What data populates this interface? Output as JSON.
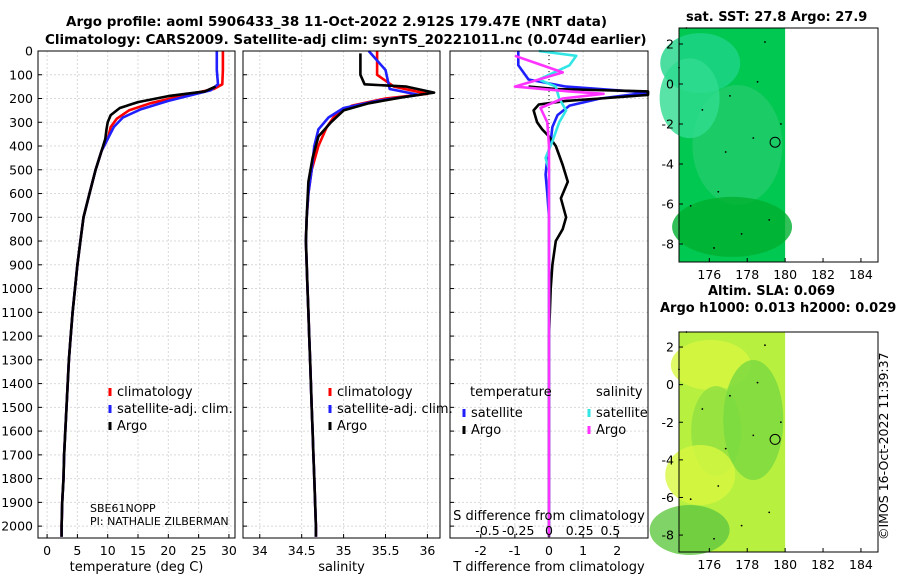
{
  "header": {
    "line1": "Argo profile: aoml 5906433_38 11-Oct-2022 2.912S 179.47E (NRT data)",
    "line2": "Climatology: CARS2009. Satellite-adj clim: synTS_20221011.nc (0.074d earlier)"
  },
  "colors": {
    "climatology": "#ff0000",
    "satellite_adj": "#1f1fff",
    "argo": "#000000",
    "sal_satellite": "#33e6e6",
    "sal_argo": "#ff33ff",
    "grid": "#d9d9d9",
    "map_fill": "#00c850",
    "map_fill2": "#b8f040"
  },
  "chart_data": [
    {
      "type": "line",
      "title": "",
      "xlabel": "temperature (deg C)",
      "ylabel": "",
      "xlim": [
        -1.5,
        31
      ],
      "ylim": [
        2050,
        0
      ],
      "xticks": [
        0,
        5,
        10,
        15,
        20,
        25,
        30
      ],
      "yticks": [
        0,
        100,
        200,
        300,
        400,
        500,
        600,
        700,
        800,
        900,
        1000,
        1100,
        1200,
        1300,
        1400,
        1500,
        1600,
        1700,
        1800,
        1900,
        2000
      ],
      "legend": [
        "climatology",
        "satellite-adj. clim.",
        "Argo"
      ],
      "annotations": [
        "SBE61NOPP",
        "PI: NATHALIE ZILBERMAN"
      ],
      "series": [
        {
          "name": "climatology",
          "points": [
            [
              29.0,
              0
            ],
            [
              29.0,
              80
            ],
            [
              28.9,
              140
            ],
            [
              27.5,
              160
            ],
            [
              22.0,
              190
            ],
            [
              17.0,
              220
            ],
            [
              13.5,
              250
            ],
            [
              11.5,
              285
            ],
            [
              10.5,
              320
            ],
            [
              10.0,
              370
            ],
            [
              9.0,
              420
            ],
            [
              8.0,
              500
            ],
            [
              7.0,
              600
            ],
            [
              6.0,
              700
            ],
            [
              5.5,
              800
            ],
            [
              5.0,
              900
            ],
            [
              4.6,
              1000
            ],
            [
              4.2,
              1100
            ],
            [
              3.9,
              1200
            ],
            [
              3.6,
              1300
            ],
            [
              3.4,
              1400
            ],
            [
              3.2,
              1500
            ],
            [
              3.0,
              1600
            ],
            [
              2.8,
              1700
            ],
            [
              2.7,
              1800
            ],
            [
              2.5,
              1900
            ],
            [
              2.4,
              2000
            ],
            [
              2.4,
              2045
            ]
          ]
        },
        {
          "name": "satellite-adj. clim.",
          "points": [
            [
              28.0,
              0
            ],
            [
              28.0,
              80
            ],
            [
              28.2,
              140
            ],
            [
              27.0,
              165
            ],
            [
              20.0,
              210
            ],
            [
              15.5,
              245
            ],
            [
              12.5,
              280
            ],
            [
              11.0,
              320
            ],
            [
              10.0,
              370
            ],
            [
              9.0,
              420
            ],
            [
              8.0,
              500
            ],
            [
              7.0,
              600
            ],
            [
              6.0,
              700
            ],
            [
              5.5,
              800
            ],
            [
              5.0,
              900
            ],
            [
              4.6,
              1000
            ],
            [
              4.2,
              1100
            ],
            [
              3.9,
              1200
            ],
            [
              3.6,
              1300
            ],
            [
              3.4,
              1400
            ],
            [
              3.2,
              1500
            ],
            [
              3.0,
              1600
            ],
            [
              2.8,
              1700
            ],
            [
              2.7,
              1800
            ],
            [
              2.5,
              1900
            ],
            [
              2.4,
              2000
            ],
            [
              2.4,
              2045
            ]
          ]
        },
        {
          "name": "Argo",
          "points": [
            [
              27.8,
              150
            ],
            [
              26.0,
              170
            ],
            [
              20.0,
              190
            ],
            [
              15.0,
              215
            ],
            [
              12.0,
              240
            ],
            [
              10.5,
              270
            ],
            [
              10.0,
              300
            ],
            [
              9.8,
              330
            ],
            [
              9.6,
              370
            ],
            [
              9.0,
              420
            ],
            [
              8.0,
              500
            ],
            [
              7.0,
              600
            ],
            [
              6.0,
              700
            ],
            [
              5.5,
              800
            ],
            [
              5.0,
              900
            ],
            [
              4.6,
              1000
            ],
            [
              4.2,
              1100
            ],
            [
              3.9,
              1200
            ],
            [
              3.6,
              1300
            ],
            [
              3.4,
              1400
            ],
            [
              3.2,
              1500
            ],
            [
              3.0,
              1600
            ],
            [
              2.8,
              1700
            ],
            [
              2.7,
              1800
            ],
            [
              2.5,
              1900
            ],
            [
              2.4,
              2000
            ],
            [
              2.4,
              2045
            ]
          ]
        }
      ]
    },
    {
      "type": "line",
      "xlabel": "salinity",
      "xlim": [
        33.8,
        36.15
      ],
      "ylim": [
        2050,
        0
      ],
      "xticks": [
        34,
        34.5,
        35,
        35.5,
        36
      ],
      "xticklabels": [
        "34",
        "34.5",
        "35",
        "35.5",
        "36"
      ],
      "legend": [
        "climatology",
        "satellite-adj. clim.",
        "Argo"
      ],
      "series": [
        {
          "name": "climatology",
          "points": [
            [
              35.4,
              0
            ],
            [
              35.4,
              100
            ],
            [
              35.6,
              150
            ],
            [
              36.0,
              180
            ],
            [
              35.5,
              200
            ],
            [
              35.1,
              230
            ],
            [
              34.9,
              270
            ],
            [
              34.8,
              320
            ],
            [
              34.7,
              400
            ],
            [
              34.62,
              500
            ],
            [
              34.58,
              600
            ],
            [
              34.56,
              700
            ],
            [
              34.55,
              800
            ],
            [
              34.56,
              900
            ],
            [
              34.57,
              1000
            ],
            [
              34.58,
              1100
            ],
            [
              34.59,
              1200
            ],
            [
              34.6,
              1300
            ],
            [
              34.61,
              1400
            ],
            [
              34.62,
              1500
            ],
            [
              34.63,
              1600
            ],
            [
              34.64,
              1700
            ],
            [
              34.65,
              1800
            ],
            [
              34.66,
              1900
            ],
            [
              34.67,
              2000
            ],
            [
              34.67,
              2045
            ]
          ]
        },
        {
          "name": "satellite-adj. clim.",
          "points": [
            [
              35.3,
              0
            ],
            [
              35.5,
              80
            ],
            [
              35.55,
              160
            ],
            [
              35.9,
              185
            ],
            [
              35.4,
              210
            ],
            [
              35.0,
              240
            ],
            [
              34.82,
              280
            ],
            [
              34.7,
              330
            ],
            [
              34.65,
              400
            ],
            [
              34.62,
              500
            ],
            [
              34.58,
              600
            ],
            [
              34.56,
              700
            ],
            [
              34.55,
              800
            ],
            [
              34.56,
              900
            ],
            [
              34.57,
              1000
            ],
            [
              34.58,
              1100
            ],
            [
              34.59,
              1200
            ],
            [
              34.6,
              1300
            ],
            [
              34.61,
              1400
            ],
            [
              34.62,
              1500
            ],
            [
              34.63,
              1600
            ],
            [
              34.64,
              1700
            ],
            [
              34.65,
              1800
            ],
            [
              34.66,
              1900
            ],
            [
              34.67,
              2000
            ],
            [
              34.67,
              2045
            ]
          ]
        },
        {
          "name": "Argo",
          "points": [
            [
              35.2,
              10
            ],
            [
              35.2,
              100
            ],
            [
              35.25,
              140
            ],
            [
              35.75,
              150
            ],
            [
              36.08,
              175
            ],
            [
              35.7,
              195
            ],
            [
              35.3,
              220
            ],
            [
              35.0,
              250
            ],
            [
              34.85,
              300
            ],
            [
              34.7,
              360
            ],
            [
              34.63,
              450
            ],
            [
              34.58,
              550
            ],
            [
              34.56,
              700
            ],
            [
              34.55,
              800
            ],
            [
              34.56,
              900
            ],
            [
              34.57,
              1000
            ],
            [
              34.58,
              1100
            ],
            [
              34.59,
              1200
            ],
            [
              34.6,
              1300
            ],
            [
              34.61,
              1400
            ],
            [
              34.62,
              1500
            ],
            [
              34.63,
              1600
            ],
            [
              34.64,
              1700
            ],
            [
              34.65,
              1800
            ],
            [
              34.66,
              1900
            ],
            [
              34.67,
              2000
            ],
            [
              34.67,
              2045
            ]
          ]
        }
      ]
    },
    {
      "type": "line",
      "xlabel": "T difference from climatology",
      "xlabel_top": "S difference from climatology",
      "xlim": [
        -2.9,
        2.9
      ],
      "ylim": [
        2050,
        0
      ],
      "xticks": [
        -2,
        -1,
        0,
        1,
        2
      ],
      "s_ticks": [
        "-0.5",
        "-0.25",
        "0",
        "0.25",
        "0.5"
      ],
      "legend_temperature_title": "temperature",
      "legend_salinity_title": "salinity",
      "legend": [
        "satellite",
        "Argo",
        "satellite",
        "Argo"
      ],
      "series": [
        {
          "name": "temperature satellite",
          "points": [
            [
              -0.9,
              0
            ],
            [
              -0.9,
              60
            ],
            [
              -0.6,
              120
            ],
            [
              0.5,
              150
            ],
            [
              2.9,
              175
            ],
            [
              1.5,
              200
            ],
            [
              0.6,
              230
            ],
            [
              0.25,
              270
            ],
            [
              0.1,
              320
            ],
            [
              0.05,
              380
            ],
            [
              -0.05,
              450
            ],
            [
              -0.1,
              520
            ],
            [
              -0.05,
              600
            ],
            [
              0.0,
              700
            ],
            [
              0.0,
              2045
            ]
          ]
        },
        {
          "name": "temperature Argo",
          "points": [
            [
              -0.6,
              150
            ],
            [
              0.2,
              160
            ],
            [
              2.9,
              170
            ],
            [
              2.9,
              185
            ],
            [
              1.5,
              200
            ],
            [
              0.5,
              210
            ],
            [
              -0.3,
              225
            ],
            [
              -0.45,
              250
            ],
            [
              -0.35,
              300
            ],
            [
              -0.2,
              330
            ],
            [
              0.0,
              360
            ],
            [
              0.2,
              400
            ],
            [
              0.4,
              480
            ],
            [
              0.55,
              550
            ],
            [
              0.35,
              620
            ],
            [
              0.5,
              700
            ],
            [
              0.4,
              750
            ],
            [
              0.2,
              800
            ],
            [
              0.1,
              900
            ],
            [
              0.05,
              1000
            ],
            [
              0.0,
              1200
            ],
            [
              0.0,
              2045
            ]
          ]
        },
        {
          "name": "salinity satellite",
          "points": [
            [
              -0.3,
              0
            ],
            [
              0.8,
              20
            ],
            [
              0.6,
              60
            ],
            [
              -0.3,
              120
            ],
            [
              0.2,
              150
            ],
            [
              0.3,
              200
            ],
            [
              0.5,
              250
            ],
            [
              0.3,
              300
            ],
            [
              0.1,
              380
            ],
            [
              -0.1,
              450
            ],
            [
              0.0,
              500
            ],
            [
              0.0,
              2045
            ]
          ]
        },
        {
          "name": "salinity Argo",
          "points": [
            [
              -1.0,
              20
            ],
            [
              -0.4,
              50
            ],
            [
              0.4,
              90
            ],
            [
              -1.0,
              150
            ],
            [
              0.6,
              170
            ],
            [
              1.6,
              180
            ],
            [
              0.4,
              200
            ],
            [
              -0.25,
              240
            ],
            [
              -0.05,
              300
            ],
            [
              0.0,
              400
            ],
            [
              0.0,
              2045
            ]
          ]
        }
      ]
    },
    {
      "type": "heatmap",
      "title": "sat. SST: 27.8  Argo: 27.9",
      "xlim": [
        174.4,
        184.9
      ],
      "ylim": [
        -8.9,
        2.8
      ],
      "xticks": [
        176,
        178,
        180,
        182,
        184
      ],
      "yticks": [
        2,
        0,
        -2,
        -4,
        -6,
        -8
      ],
      "data_extent_lon": [
        174.4,
        180.0
      ],
      "argo_position": [
        179.47,
        -2.912
      ]
    },
    {
      "type": "heatmap",
      "title": "Altim. SLA: 0.069",
      "subtitle": "Argo h1000: 0.013  h2000: 0.029",
      "xlim": [
        174.4,
        184.9
      ],
      "ylim": [
        -8.9,
        2.8
      ],
      "xticks": [
        176,
        178,
        180,
        182,
        184
      ],
      "yticks": [
        2,
        0,
        -2,
        -4,
        -6,
        -8
      ],
      "data_extent_lon": [
        174.4,
        180.0
      ],
      "argo_position": [
        179.47,
        -2.912
      ]
    }
  ],
  "stamp": "©IMOS 16-Oct-2022 11:39:37"
}
